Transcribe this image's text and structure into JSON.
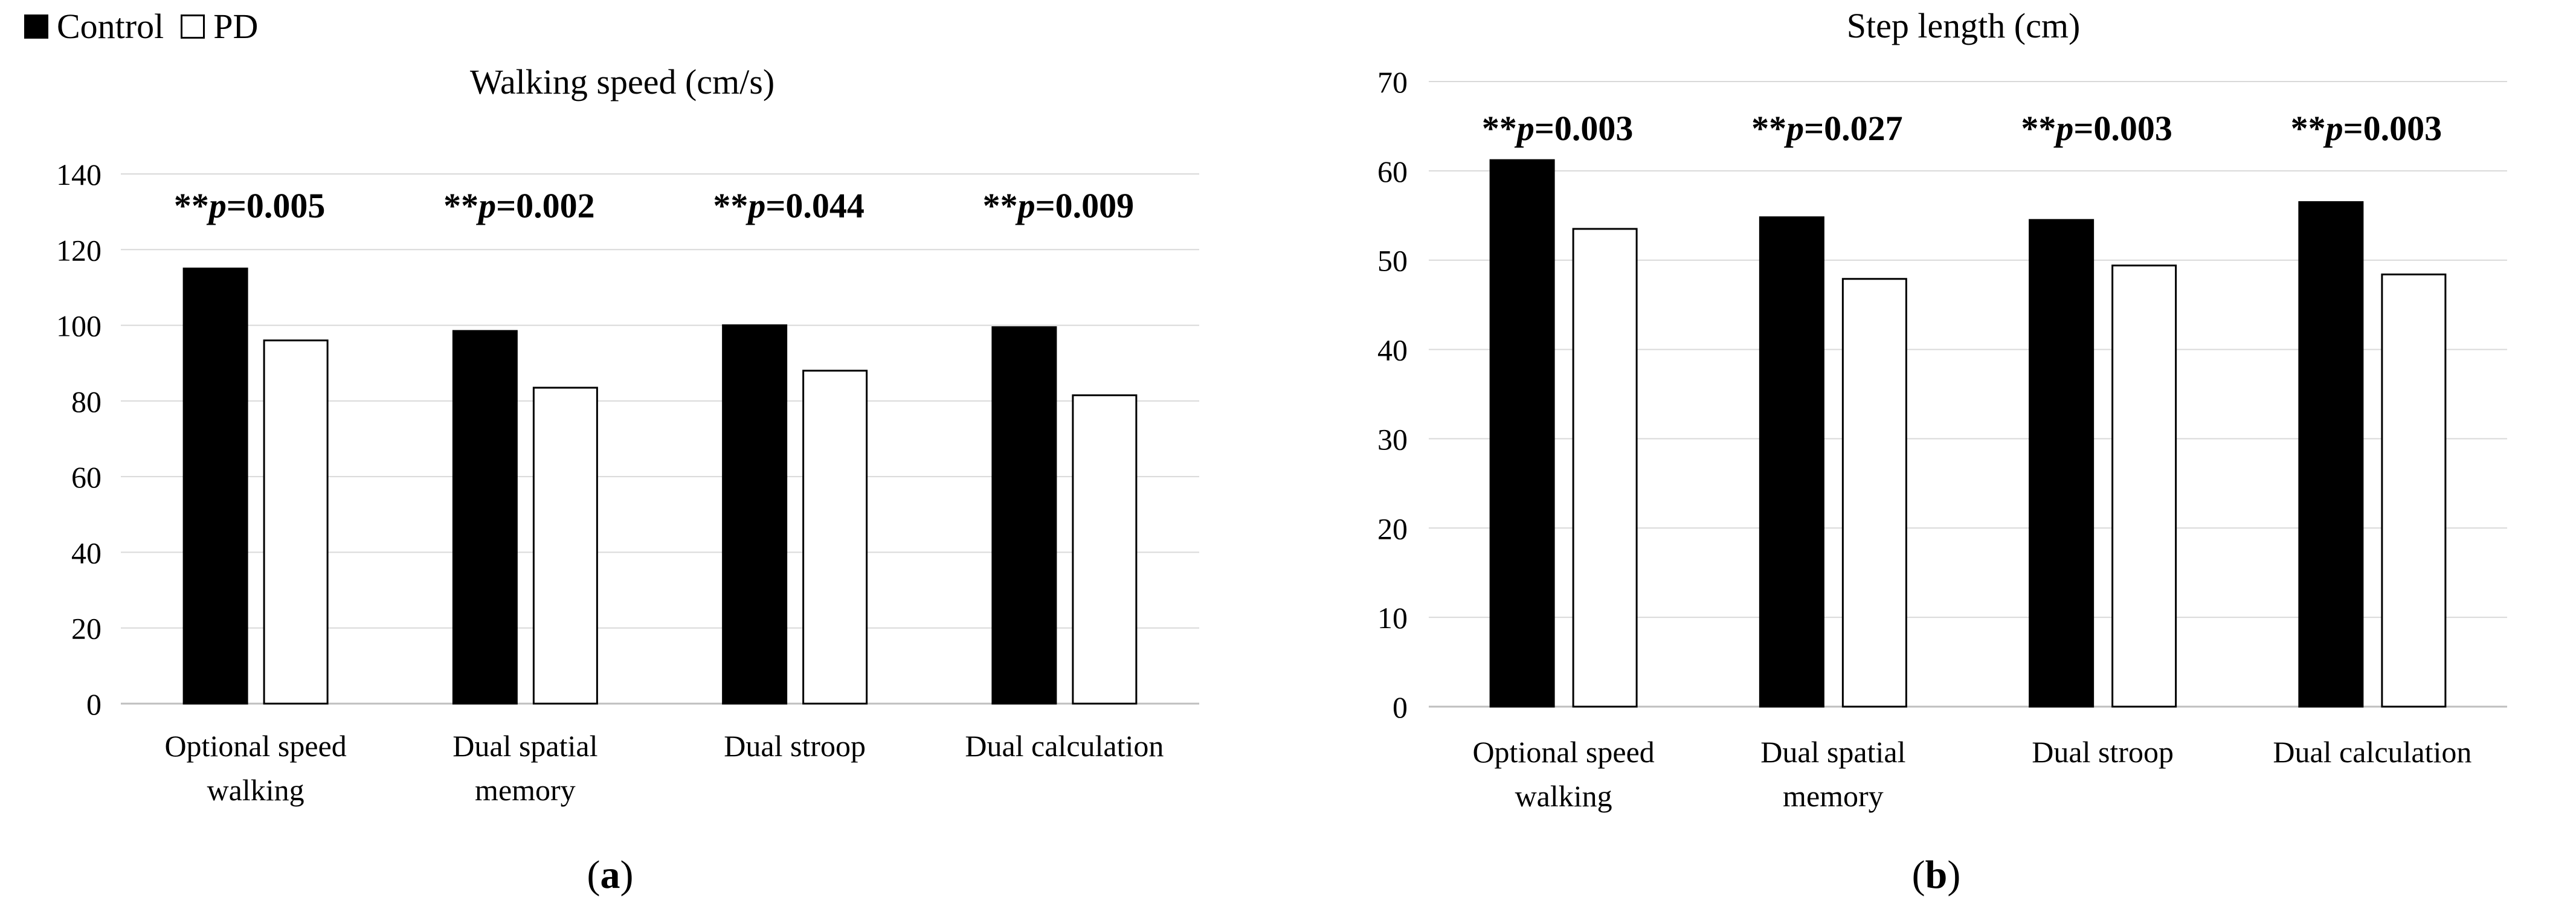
{
  "legend": {
    "control_label": "Control",
    "pd_label": "PD",
    "control_color": "#000000",
    "pd_color": "#ffffff"
  },
  "chart_data": [
    {
      "type": "bar",
      "title": "Walking speed (cm/s)",
      "panel_label": "a",
      "categories": [
        [
          "Optional speed",
          "walking"
        ],
        [
          "Dual spatial",
          "memory"
        ],
        [
          "Dual stroop"
        ],
        [
          "Dual calculation"
        ]
      ],
      "series": [
        {
          "name": "Control",
          "values": [
            115,
            98.5,
            100,
            99.5
          ]
        },
        {
          "name": "PD",
          "values": [
            96,
            83.5,
            88,
            81.5
          ]
        }
      ],
      "annotations": [
        {
          "stars": "**",
          "p_symbol": "p",
          "text": "=0.005"
        },
        {
          "stars": "**",
          "p_symbol": "p",
          "text": "=0.002"
        },
        {
          "stars": "**",
          "p_symbol": "p",
          "text": "=0.044"
        },
        {
          "stars": "**",
          "p_symbol": "p",
          "text": "=0.009"
        }
      ],
      "ylim": [
        0,
        140
      ],
      "yticks": [
        0,
        20,
        40,
        60,
        80,
        100,
        120,
        140
      ],
      "grid": true
    },
    {
      "type": "bar",
      "title": "Step length (cm)",
      "panel_label": "b",
      "categories": [
        [
          "Optional speed",
          "walking"
        ],
        [
          "Dual spatial",
          "memory"
        ],
        [
          "Dual stroop"
        ],
        [
          "Dual calculation"
        ]
      ],
      "series": [
        {
          "name": "Control",
          "values": [
            61.2,
            54.8,
            54.5,
            56.5
          ]
        },
        {
          "name": "PD",
          "values": [
            53.5,
            47.9,
            49.4,
            48.4
          ]
        }
      ],
      "annotations": [
        {
          "stars": "**",
          "p_symbol": "p",
          "text": "=0.003"
        },
        {
          "stars": "**",
          "p_symbol": "p",
          "text": "=0.027"
        },
        {
          "stars": "**",
          "p_symbol": "p",
          "text": "=0.003"
        },
        {
          "stars": "**",
          "p_symbol": "p",
          "text": "=0.003"
        }
      ],
      "ylim": [
        0,
        70
      ],
      "yticks": [
        0,
        10,
        20,
        30,
        40,
        50,
        60,
        70
      ],
      "grid": true
    }
  ]
}
